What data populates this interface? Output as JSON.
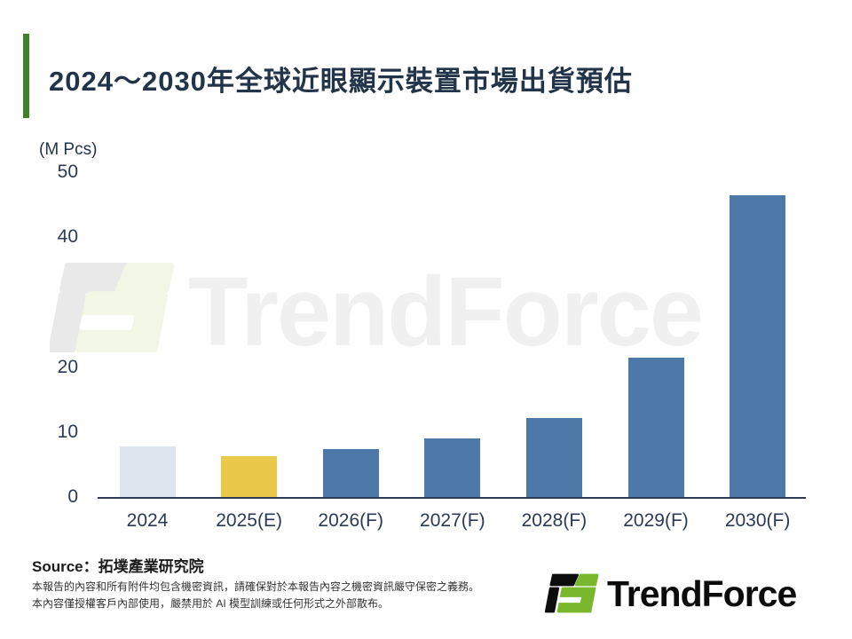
{
  "title": {
    "text": "2024～2030年全球近眼顯示裝置市場出貨預估"
  },
  "chart_data": {
    "type": "bar",
    "title": "2024～2030年全球近眼顯示裝置市場出貨預估",
    "unit_label": "(M Pcs)",
    "categories": [
      "2024",
      "2025(E)",
      "2026(F)",
      "2027(F)",
      "2028(F)",
      "2029(F)",
      "2030(F)"
    ],
    "values": [
      7.8,
      6.3,
      7.4,
      9.0,
      12.2,
      21.5,
      46.4
    ],
    "bar_colors": [
      "#dfe5ee",
      "#eac94a",
      "#4d79a8",
      "#4d79a8",
      "#4d79a8",
      "#4d79a8",
      "#4d79a8"
    ],
    "xlabel": "",
    "ylabel": "(M Pcs)",
    "ylim": [
      0,
      50
    ],
    "yticks": [
      0,
      10,
      20,
      30,
      40,
      50
    ],
    "grid": false,
    "legend": "none"
  },
  "watermark": {
    "text": "TrendForce"
  },
  "footer": {
    "source": "Source：拓墣產業研究院",
    "disclaimer_line1": "本報告的內容和所有附件均包含機密資訊，請確保對於本報告內容之機密資訊嚴守保密之義務。",
    "disclaimer_line2": "本內容僅授權客戶內部使用，嚴禁用於 AI 模型訓練或任何形式之外部散布。",
    "logo_text": "TrendForce"
  },
  "colors": {
    "accent_green": "#3e7f27",
    "title_navy": "#22344a",
    "axis_text": "#2b3a55",
    "axis_line": "#2c3a52",
    "bar_blue": "#4d79a8",
    "bar_yellow": "#eac94a",
    "bar_light": "#dfe5ee",
    "logo_black": "#0c0c0c",
    "logo_green": "#79b72c",
    "watermark_gray": "#f0f0f0",
    "watermark_icon_gray": "#e9e9e9",
    "watermark_icon_green": "#f2f7e5",
    "source_text": "#1b1b1b",
    "disclaimer_text": "#333333",
    "white": "#ffffff"
  }
}
